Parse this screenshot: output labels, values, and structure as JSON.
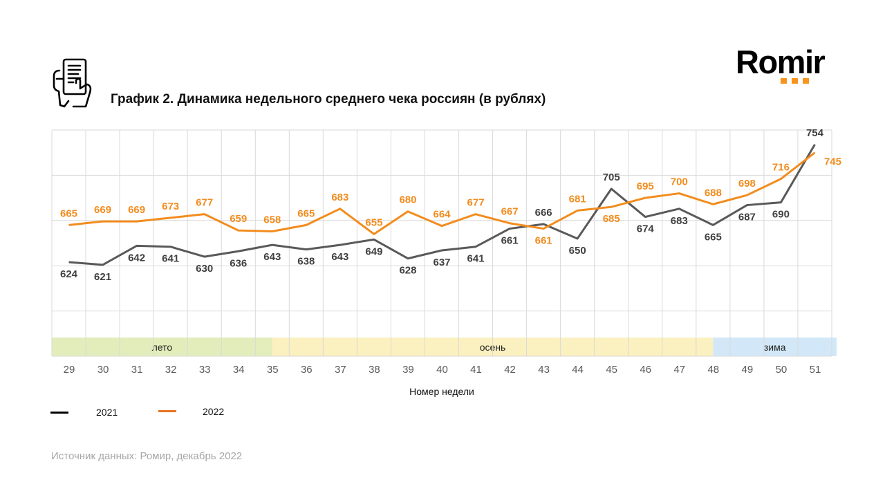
{
  "header": {
    "title": "График 2. Динамика недельного среднего чека россиян (в рублях)",
    "logo_text": "Romir",
    "logo_dots_color": "#f7941d"
  },
  "footer": {
    "source": "Источник данных: Ромир, декабрь 2022"
  },
  "legend": [
    {
      "name": "2021",
      "color": "#000000"
    },
    {
      "name": "2022",
      "color": "#e8731f"
    }
  ],
  "chart_data": {
    "type": "line",
    "title": "График 2. Динамика недельного среднего чека россиян (в рублях)",
    "xlabel": "Номер недели",
    "ylabel": "",
    "x": [
      "29",
      "30",
      "31",
      "32",
      "33",
      "34",
      "35",
      "36",
      "37",
      "38",
      "39",
      "40",
      "41",
      "42",
      "43",
      "44",
      "45",
      "46",
      "47",
      "48",
      "49",
      "50",
      "51"
    ],
    "ylim": [
      520,
      770
    ],
    "ystep": 50,
    "grid": true,
    "legend_position": "bottom-left",
    "series": [
      {
        "name": "2021",
        "color": "#595959",
        "label_color": "#404040",
        "values": [
          624,
          621,
          642,
          641,
          630,
          636,
          643,
          638,
          643,
          649,
          628,
          637,
          641,
          661,
          666,
          650,
          705,
          674,
          683,
          665,
          687,
          690,
          754
        ]
      },
      {
        "name": "2022",
        "color": "#f28c1e",
        "label_color": "#f28c1e",
        "values": [
          665,
          669,
          669,
          673,
          677,
          659,
          658,
          665,
          683,
          655,
          680,
          664,
          677,
          667,
          661,
          681,
          685,
          695,
          700,
          688,
          698,
          716,
          745
        ]
      }
    ],
    "seasons": [
      {
        "label": "лето",
        "from": "29",
        "to": "35",
        "color": "#e3edbb"
      },
      {
        "label": "осень",
        "from": "35",
        "to": "48",
        "color": "#fbf0bf"
      },
      {
        "label": "зима",
        "from": "48",
        "to": "51",
        "color": "#d2e8f8"
      }
    ]
  }
}
